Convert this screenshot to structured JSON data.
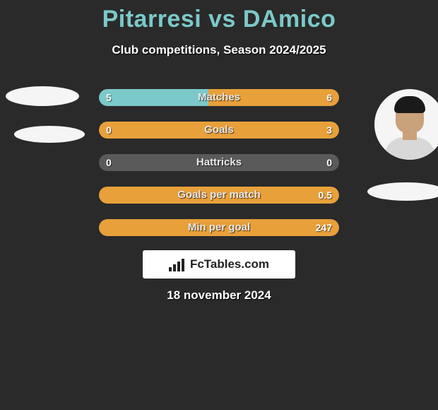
{
  "title": "Pitarresi vs DAmico",
  "subtitle": "Club competitions, Season 2024/2025",
  "date": "18 november 2024",
  "logo_text": "FcTables.com",
  "colors": {
    "background": "#2a2a2a",
    "title": "#7cc9c9",
    "left_bar": "#7cc9c9",
    "right_bar": "#e8a03a",
    "neutral_bar": "#5a5a5a",
    "text": "#ffffff"
  },
  "bars": [
    {
      "label": "Matches",
      "left_val": "5",
      "right_val": "6",
      "left_pct": 45.5,
      "right_pct": 54.5
    },
    {
      "label": "Goals",
      "left_val": "0",
      "right_val": "3",
      "left_pct": 0,
      "right_pct": 100
    },
    {
      "label": "Hattricks",
      "left_val": "0",
      "right_val": "0",
      "left_pct": 0,
      "right_pct": 0
    },
    {
      "label": "Goals per match",
      "left_val": "",
      "right_val": "0.5",
      "left_pct": 0,
      "right_pct": 100
    },
    {
      "label": "Min per goal",
      "left_val": "",
      "right_val": "247",
      "left_pct": 0,
      "right_pct": 100
    }
  ]
}
